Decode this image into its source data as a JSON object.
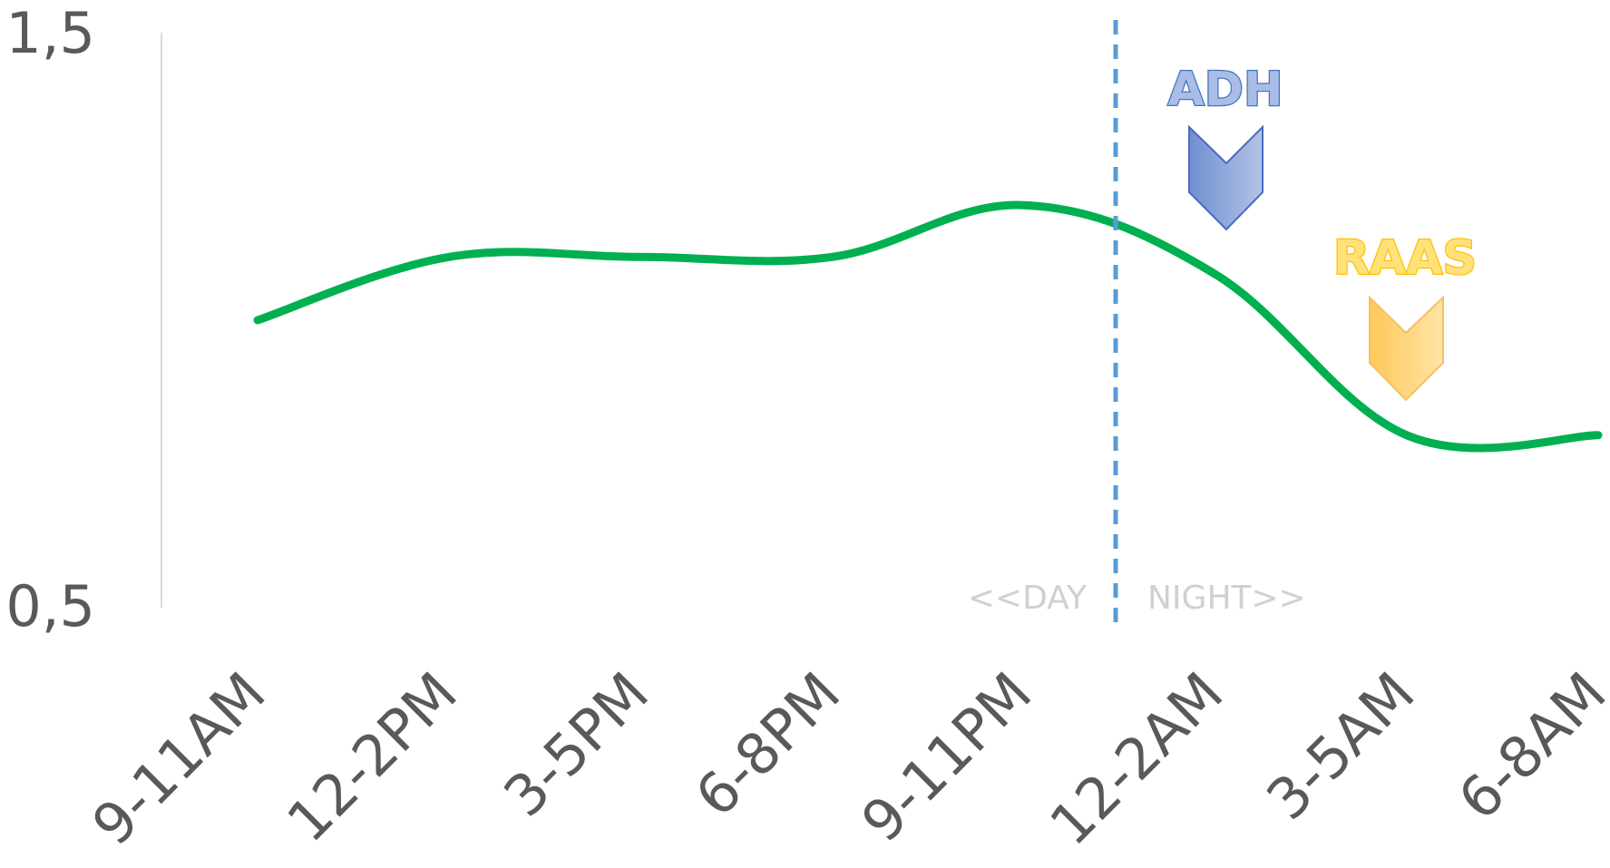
{
  "chart_data": {
    "type": "line",
    "categories": [
      "9-11AM",
      "12-2PM",
      "3-5PM",
      "6-8PM",
      "9-11PM",
      "12-2AM",
      "3-5AM",
      "6-8AM"
    ],
    "series": [
      {
        "values": [
          1.0,
          1.11,
          1.11,
          1.11,
          1.2,
          1.08,
          0.8,
          0.8
        ],
        "color": "#00b050"
      }
    ],
    "ylim": [
      0.5,
      1.5
    ],
    "y_tick_labels": [
      "0,5",
      "1,5"
    ],
    "grid": false,
    "title": "",
    "xlabel": "",
    "ylabel": "",
    "annotations": {
      "divider_color": "#5b9bd5",
      "day_label": "<<DAY",
      "night_label": "NIGHT>>",
      "adh": {
        "label": "ADH",
        "color": "#4472c4",
        "fill": "#8ea9db"
      },
      "raas": {
        "label": "RAAS",
        "color": "#ffc000",
        "fill": "#ffd966"
      }
    }
  }
}
